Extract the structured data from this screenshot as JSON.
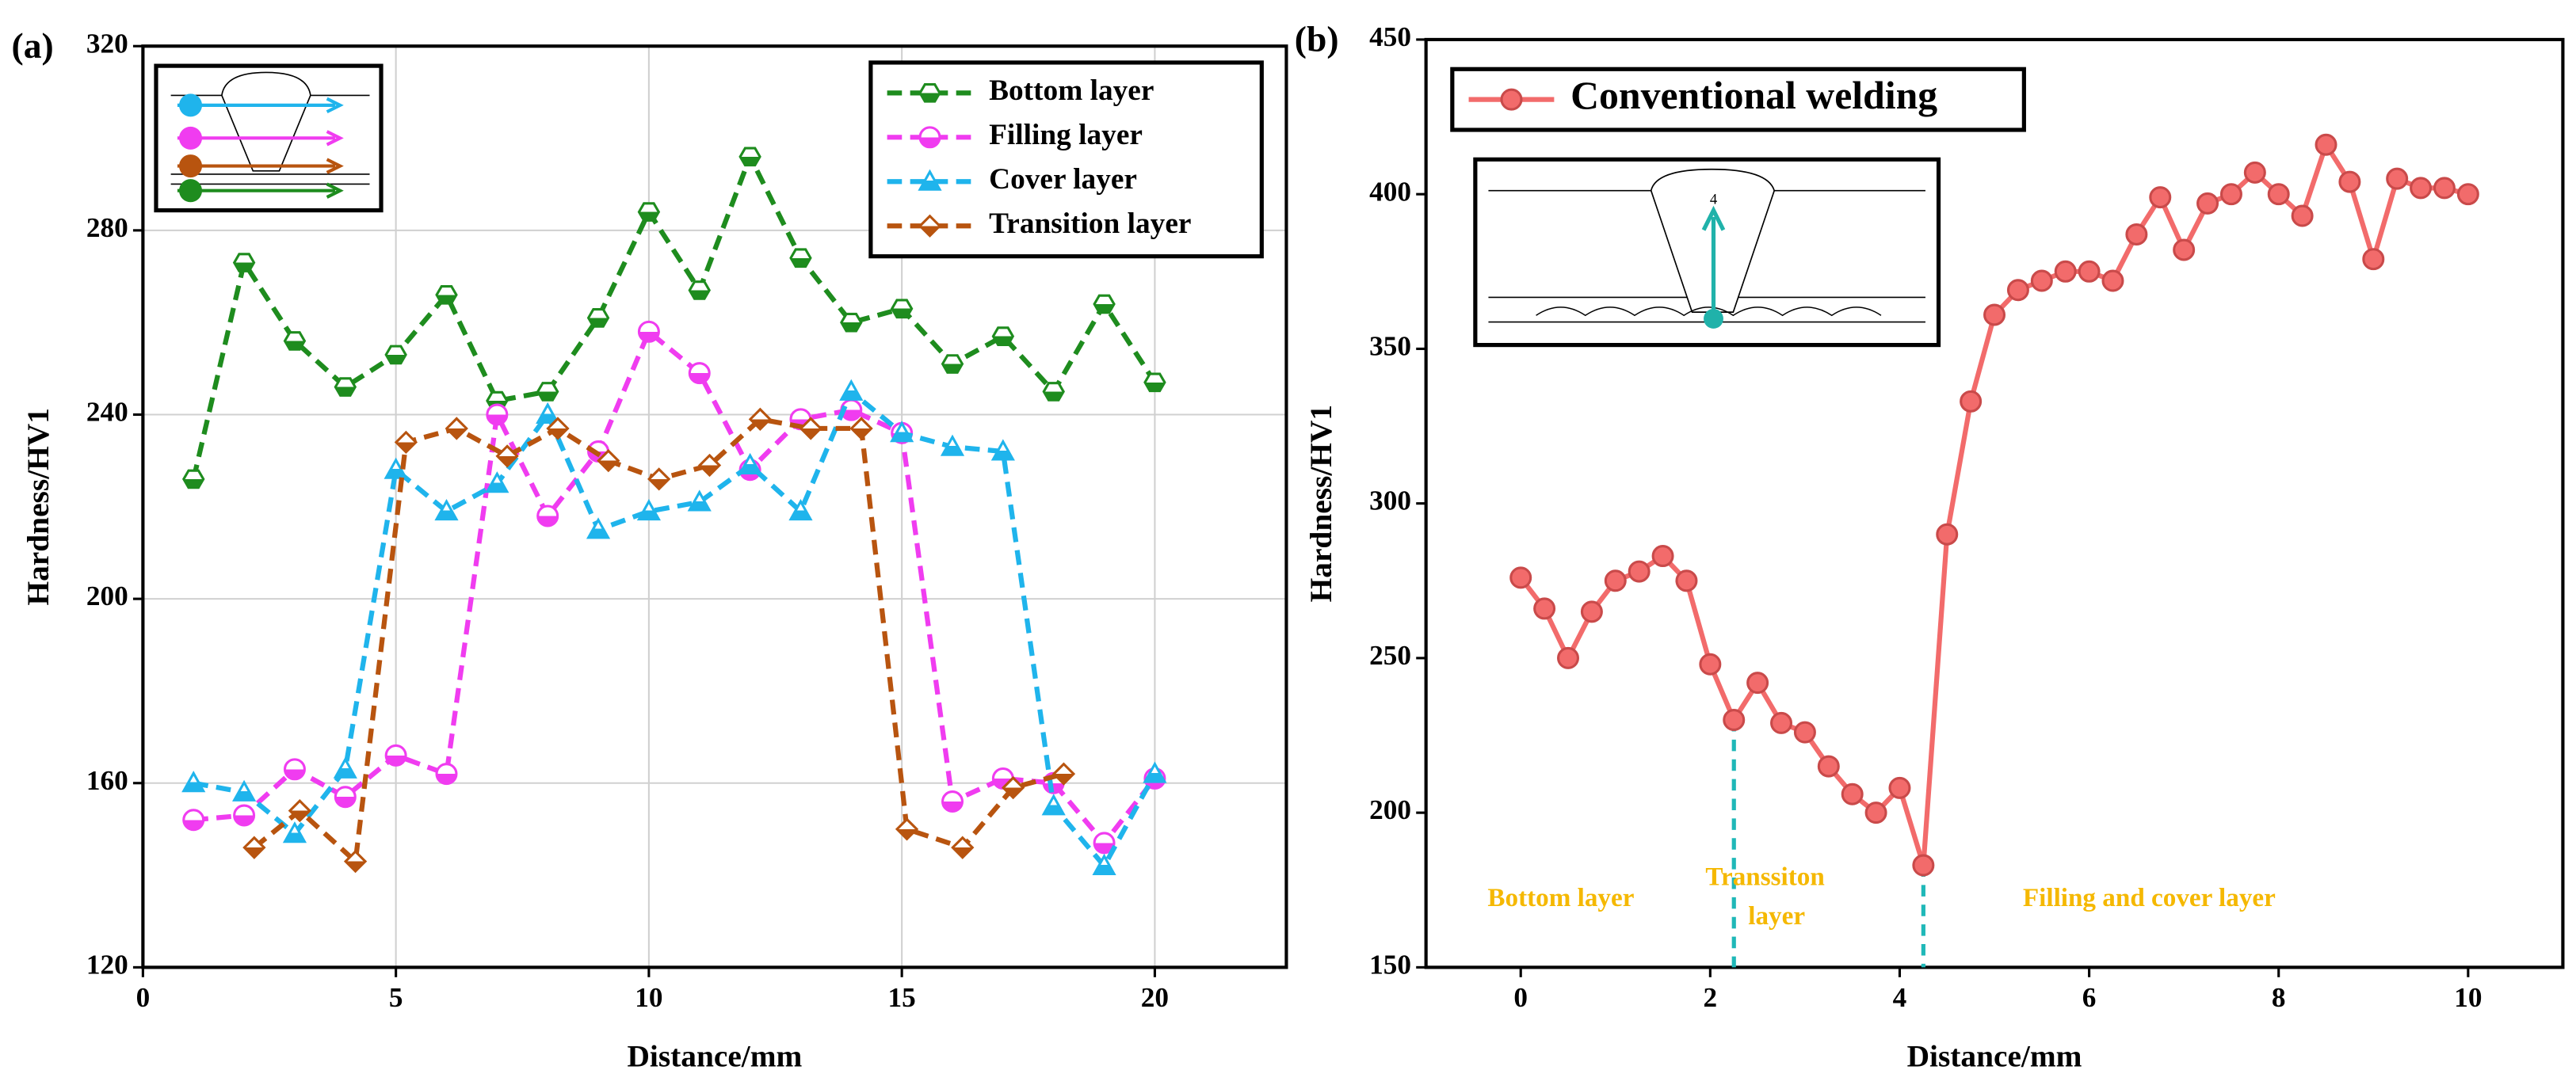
{
  "chart_data": [
    {
      "type": "line",
      "panel_label": "(a)",
      "x_label": "Distance/mm",
      "y_label": "Hardness/HV1",
      "xlim": [
        0,
        22.6
      ],
      "ylim": [
        120,
        320
      ],
      "xticks": [
        0,
        5,
        10,
        15,
        20
      ],
      "yticks": [
        120,
        160,
        200,
        240,
        280,
        320
      ],
      "grid": true,
      "legend": "upper right",
      "series": [
        {
          "name": "Bottom layer",
          "color": "#1e8c1e",
          "marker": "hexagon",
          "x": [
            1,
            2,
            3,
            4,
            5,
            6,
            7,
            8,
            9,
            10,
            11,
            12,
            13,
            14,
            15,
            16,
            17,
            18,
            19,
            20
          ],
          "values": [
            226,
            273,
            256,
            246,
            253,
            266,
            243,
            245,
            261,
            284,
            267,
            296,
            274,
            260,
            263,
            251,
            257,
            245,
            264,
            247
          ]
        },
        {
          "name": "Filling layer",
          "color": "#f03cf0",
          "marker": "circle",
          "x": [
            1,
            2,
            3,
            4,
            5,
            6,
            7,
            8,
            9,
            10,
            11,
            12,
            13,
            14,
            15,
            16,
            17,
            18,
            19,
            20
          ],
          "values": [
            152,
            153,
            163,
            157,
            166,
            162,
            240,
            218,
            232,
            258,
            249,
            228,
            239,
            241,
            236,
            156,
            161,
            160,
            147,
            161
          ]
        },
        {
          "name": "Cover layer",
          "color": "#1fb4ec",
          "marker": "triangle",
          "x": [
            1,
            2,
            3,
            4,
            5,
            6,
            7,
            8,
            9,
            10,
            11,
            12,
            13,
            14,
            15,
            16,
            17,
            18,
            19,
            20
          ],
          "values": [
            160,
            158,
            149,
            163,
            228,
            219,
            225,
            240,
            215,
            219,
            221,
            229,
            219,
            245,
            236,
            233,
            232,
            155,
            142,
            162
          ]
        },
        {
          "name": "Transition layer",
          "color": "#b8540f",
          "marker": "diamond",
          "x": [
            2.2,
            3.1,
            4.2,
            5.2,
            6.2,
            7.2,
            8.2,
            9.2,
            10.2,
            11.2,
            12.2,
            13.2,
            14.2,
            15.1,
            16.2,
            17.2,
            18.2
          ],
          "values": [
            146,
            154,
            143,
            234,
            237,
            231,
            237,
            230,
            226,
            229,
            239,
            237,
            237,
            150,
            146,
            159,
            162
          ]
        }
      ]
    },
    {
      "type": "line",
      "panel_label": "(b)",
      "x_label": "Distance/mm",
      "y_label": "Hardness/HV1",
      "xlim": [
        -1,
        11
      ],
      "ylim": [
        150,
        450
      ],
      "xticks": [
        0,
        2,
        4,
        6,
        8,
        10
      ],
      "yticks": [
        150,
        200,
        250,
        300,
        350,
        400,
        450
      ],
      "grid": false,
      "legend": "upper left",
      "inset_label": "4",
      "boundaries": [
        2.25,
        4.25
      ],
      "annotations": [
        "Bottom layer",
        "Transsiton layer",
        "Filling and cover layer"
      ],
      "series": [
        {
          "name": "Conventional welding",
          "color": "#f26b6b",
          "marker": "circle-solid",
          "x": [
            0,
            0.25,
            0.5,
            0.75,
            1,
            1.25,
            1.5,
            1.75,
            2,
            2.25,
            2.5,
            2.75,
            3,
            3.25,
            3.5,
            3.75,
            4,
            4.25,
            4.5,
            4.75,
            5,
            5.25,
            5.5,
            5.75,
            6,
            6.25,
            6.5,
            6.75,
            7,
            7.25,
            7.5,
            7.75,
            8,
            8.25,
            8.5,
            8.75,
            9,
            9.25,
            9.5,
            9.75,
            10
          ],
          "values": [
            276,
            266,
            250,
            265,
            275,
            278,
            283,
            275,
            248,
            230,
            242,
            229,
            226,
            215,
            206,
            200,
            208,
            183,
            290,
            333,
            361,
            369,
            372,
            375,
            375,
            372,
            387,
            399,
            382,
            397,
            400,
            407,
            400,
            393,
            416,
            404,
            379,
            405,
            402,
            402,
            400
          ]
        }
      ]
    }
  ]
}
